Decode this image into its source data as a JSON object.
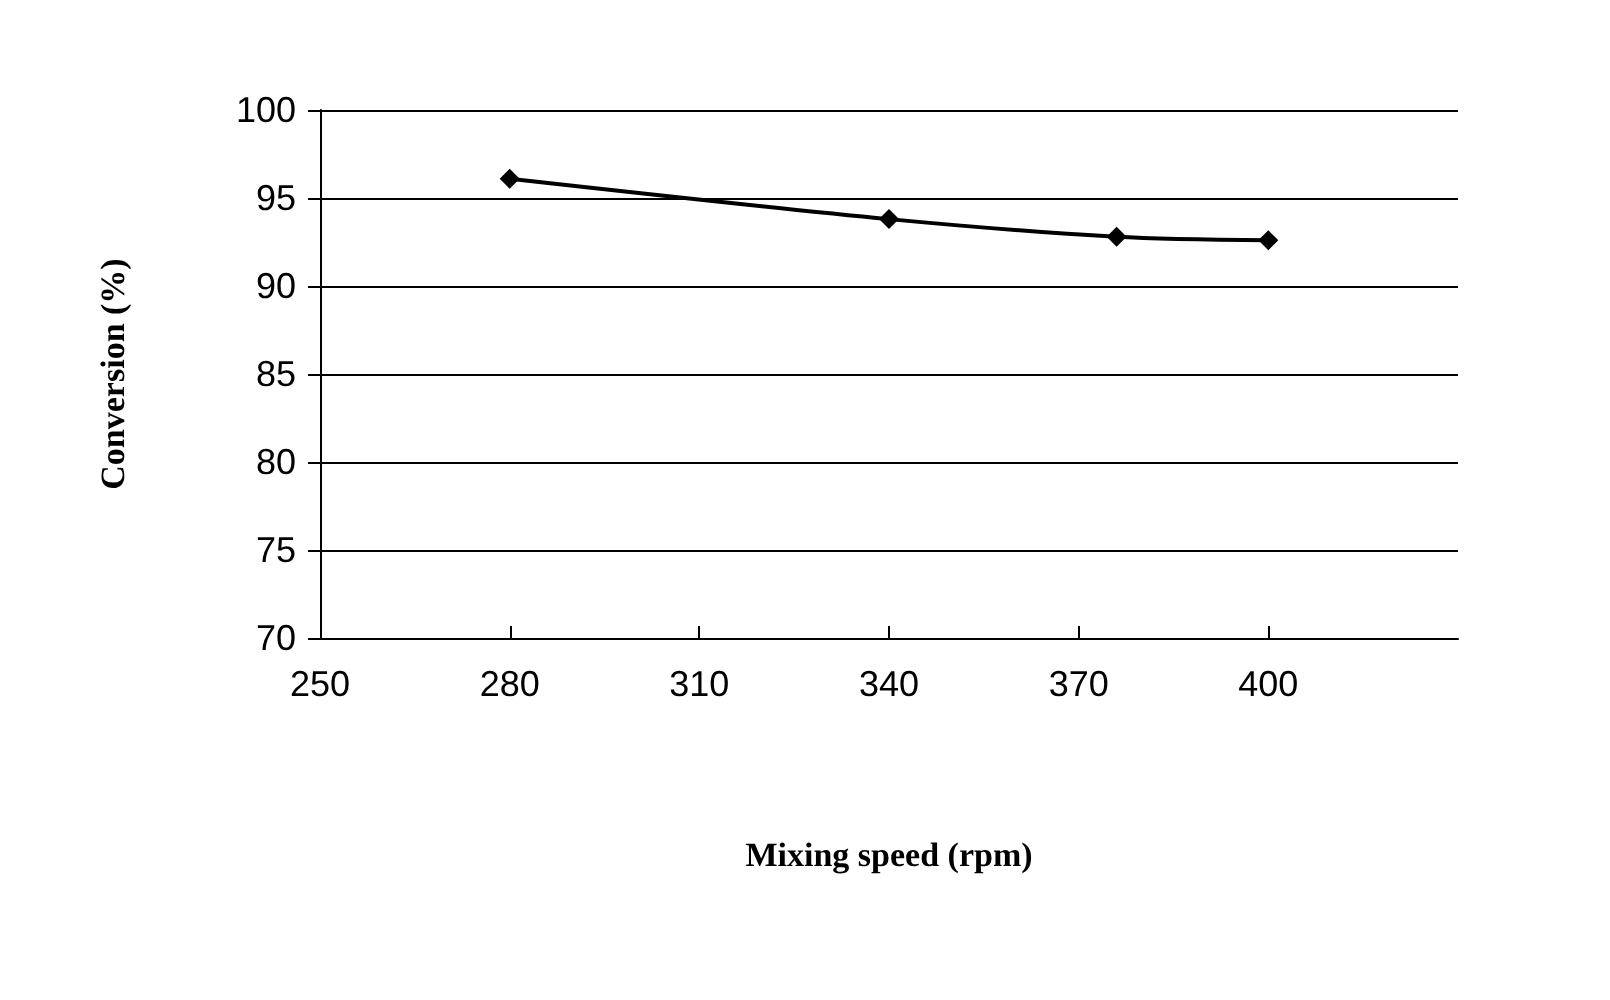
{
  "chart_data": {
    "type": "line",
    "xlabel": "Mixing speed (rpm)",
    "ylabel": "Conversion (%)",
    "x": [
      280,
      340,
      376,
      400
    ],
    "series": [
      {
        "color": "#000000",
        "values": [
          96.1,
          93.8,
          92.8,
          92.6
        ]
      }
    ],
    "xlim": [
      250,
      430
    ],
    "xticks": [
      250,
      280,
      310,
      340,
      370,
      400
    ],
    "ylim": [
      70,
      100
    ],
    "yticks": [
      70,
      75,
      80,
      85,
      90,
      95,
      100
    ],
    "grid": "y",
    "marker": "diamond",
    "line_style": "solid"
  }
}
